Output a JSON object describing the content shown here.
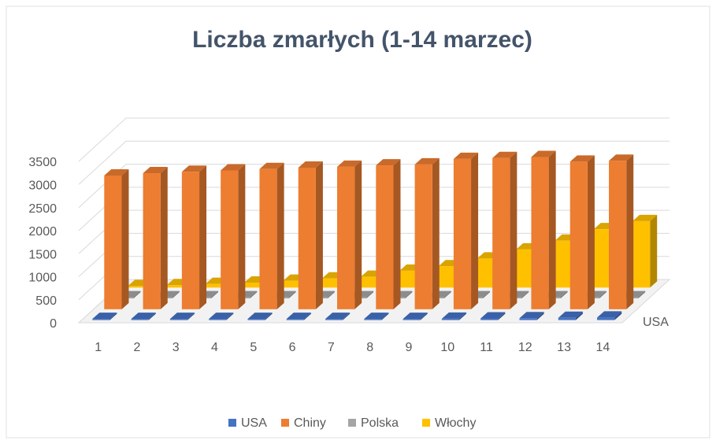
{
  "chart_data": {
    "type": "bar3d",
    "title": "Liczba zmarłych (1-14 marzec)",
    "categories": [
      "1",
      "2",
      "3",
      "4",
      "5",
      "6",
      "7",
      "8",
      "9",
      "10",
      "11",
      "12",
      "13",
      "14"
    ],
    "depth_labels": [
      "USA"
    ],
    "series": [
      {
        "name": "USA",
        "color": "#4472c4",
        "values": [
          1,
          2,
          6,
          9,
          11,
          12,
          15,
          19,
          22,
          28,
          36,
          40,
          47,
          54
        ]
      },
      {
        "name": "Chiny",
        "color": "#ed7d31",
        "values": [
          2900,
          2950,
          2980,
          3010,
          3040,
          3070,
          3090,
          3120,
          3140,
          3260,
          3280,
          3300,
          3200,
          3220
        ]
      },
      {
        "name": "Polska",
        "color": "#a5a5a5",
        "values": [
          0,
          0,
          0,
          0,
          0,
          0,
          0,
          0,
          0,
          0,
          0,
          1,
          2,
          3
        ]
      },
      {
        "name": "Włochy",
        "color": "#ffc000",
        "values": [
          34,
          52,
          79,
          107,
          148,
          197,
          233,
          366,
          463,
          631,
          827,
          1016,
          1266,
          1441
        ]
      }
    ],
    "ylim": [
      0,
      3500
    ],
    "yticks": [
      0,
      500,
      1000,
      1500,
      2000,
      2500,
      3000,
      3500
    ],
    "grid": true,
    "legend": "bottom"
  }
}
